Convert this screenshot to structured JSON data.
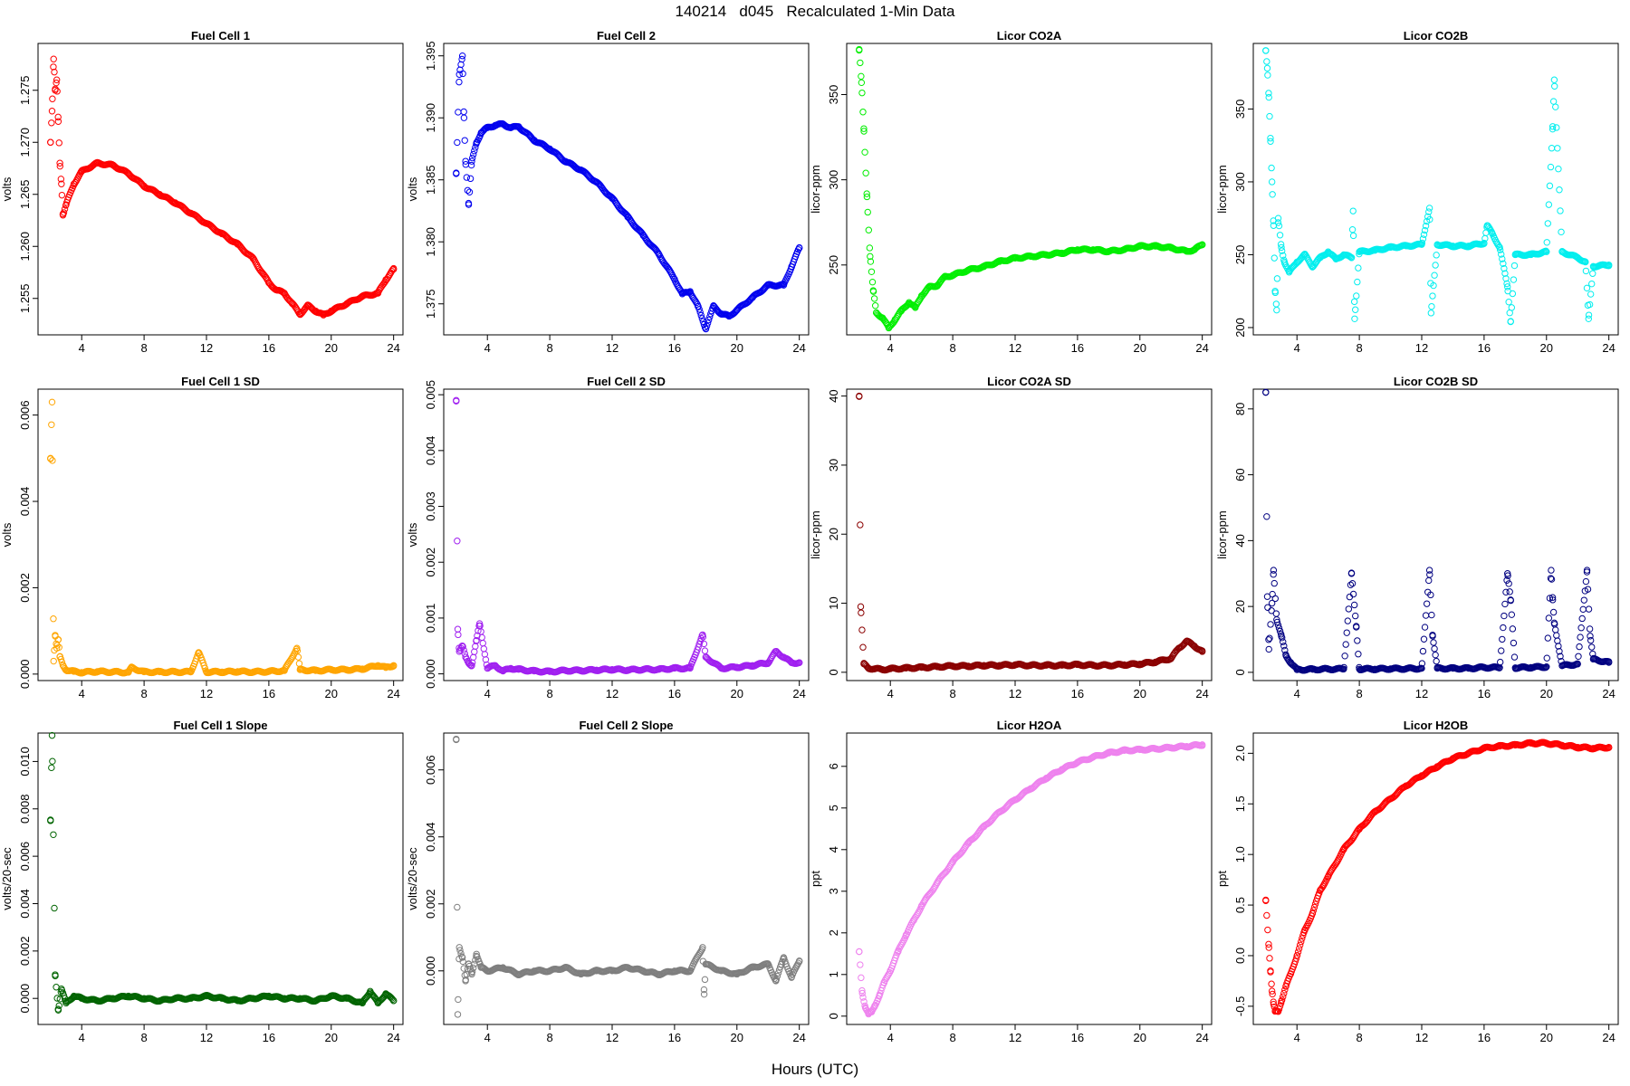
{
  "title": "140214   d045   Recalculated 1-Min Data",
  "xlabel": "Hours (UTC)",
  "chart_data": [
    {
      "type": "scatter",
      "title": "Fuel Cell 1",
      "ylabel": "volts",
      "xlim": [
        1.2,
        24.6
      ],
      "ylim": [
        1.2515,
        1.2795
      ],
      "xticks": [
        4,
        8,
        12,
        16,
        20,
        24
      ],
      "yticks": [
        1.255,
        1.26,
        1.265,
        1.27,
        1.275
      ],
      "ytick_labels": [
        "1.255",
        "1.260",
        "1.265",
        "1.270",
        "1.275"
      ],
      "color": "#ff0000",
      "x": [
        2.0,
        2.1,
        2.2,
        2.3,
        2.4,
        2.5,
        2.6,
        2.7,
        2.8,
        3.0,
        3.5,
        4.0,
        5.0,
        6.0,
        7.0,
        8.0,
        9.0,
        10.0,
        11.0,
        12.0,
        13.0,
        14.0,
        15.0,
        16.0,
        16.5,
        17.0,
        17.5,
        18.0,
        18.5,
        19.0,
        19.5,
        20.0,
        21.0,
        22.0,
        23.0,
        23.5,
        24.0
      ],
      "y": [
        1.27,
        1.273,
        1.278,
        1.275,
        1.276,
        1.272,
        1.268,
        1.266,
        1.263,
        1.264,
        1.266,
        1.2672,
        1.268,
        1.2678,
        1.267,
        1.2658,
        1.265,
        1.2642,
        1.2632,
        1.2622,
        1.2612,
        1.2602,
        1.2588,
        1.2565,
        1.2558,
        1.2555,
        1.2545,
        1.2535,
        1.2543,
        1.2538,
        1.2534,
        1.2538,
        1.2545,
        1.2552,
        1.2555,
        1.2568,
        1.2578
      ]
    },
    {
      "type": "scatter",
      "title": "Fuel Cell 2",
      "ylabel": "volts",
      "xlim": [
        1.2,
        24.6
      ],
      "ylim": [
        1.3725,
        1.396
      ],
      "xticks": [
        4,
        8,
        12,
        16,
        20,
        24
      ],
      "yticks": [
        1.375,
        1.38,
        1.385,
        1.39,
        1.395
      ],
      "ytick_labels": [
        "1.375",
        "1.380",
        "1.385",
        "1.390",
        "1.395"
      ],
      "color": "#0000ee",
      "x": [
        2.0,
        2.2,
        2.4,
        2.5,
        2.6,
        2.8,
        3.0,
        3.3,
        3.6,
        4.0,
        4.5,
        5.0,
        5.5,
        6.0,
        7.0,
        8.0,
        9.0,
        10.0,
        11.0,
        12.0,
        13.0,
        14.0,
        15.0,
        16.0,
        16.5,
        17.0,
        17.5,
        18.0,
        18.5,
        19.0,
        19.5,
        20.0,
        21.0,
        22.0,
        23.0,
        23.5,
        24.0
      ],
      "y": [
        1.3855,
        1.3935,
        1.395,
        1.39,
        1.3865,
        1.383,
        1.3865,
        1.388,
        1.3888,
        1.3892,
        1.3894,
        1.3895,
        1.3892,
        1.3893,
        1.3882,
        1.3875,
        1.3865,
        1.3858,
        1.3848,
        1.3835,
        1.382,
        1.3805,
        1.379,
        1.377,
        1.3758,
        1.376,
        1.3748,
        1.373,
        1.3748,
        1.3742,
        1.374,
        1.3745,
        1.3755,
        1.3765,
        1.3765,
        1.378,
        1.3795
      ]
    },
    {
      "type": "scatter",
      "title": "Licor CO2A",
      "ylabel": "licor-ppm",
      "xlim": [
        1.2,
        24.6
      ],
      "ylim": [
        209,
        380
      ],
      "xticks": [
        4,
        8,
        12,
        16,
        20,
        24
      ],
      "yticks": [
        250,
        300,
        350
      ],
      "ytick_labels": [
        "250",
        "300",
        "350"
      ],
      "color": "#00ee00",
      "x": [
        2.0,
        2.15,
        2.3,
        2.5,
        2.7,
        2.9,
        3.1,
        3.5,
        3.9,
        4.3,
        4.7,
        5.2,
        5.6,
        6.0,
        6.5,
        7.0,
        7.5,
        8.0,
        9.0,
        10.0,
        11.0,
        12.0,
        13.0,
        14.0,
        15.0,
        16.0,
        17.0,
        18.0,
        19.0,
        20.0,
        21.0,
        22.0,
        23.0,
        23.5,
        24.0
      ],
      "y": [
        376,
        357,
        330,
        290,
        255,
        235,
        222,
        219,
        213,
        218,
        223,
        228,
        225,
        232,
        237,
        238,
        243,
        244,
        247,
        249,
        252,
        254,
        255,
        256,
        257,
        259,
        259,
        258,
        259,
        261,
        261,
        260,
        258,
        259,
        262
      ]
    },
    {
      "type": "scatter",
      "title": "Licor CO2B",
      "ylabel": "licor-ppm",
      "xlim": [
        1.2,
        24.6
      ],
      "ylim": [
        195,
        395
      ],
      "xticks": [
        4,
        8,
        12,
        16,
        20,
        24
      ],
      "yticks": [
        200,
        250,
        300,
        350
      ],
      "ytick_labels": [
        "200",
        "250",
        "300",
        "350"
      ],
      "color": "#00eeee",
      "x": [
        2.0,
        2.1,
        2.2,
        2.3,
        2.4,
        2.5,
        2.6,
        2.7,
        2.8,
        3.0,
        3.2,
        3.5,
        4.0,
        4.5,
        5.0,
        5.5,
        6.0,
        6.5,
        7.0,
        7.5,
        7.6,
        7.7,
        8.0,
        9.0,
        10.0,
        11.0,
        12.0,
        12.5,
        12.6,
        13.0,
        14.0,
        15.0,
        16.0,
        16.2,
        16.5,
        17.0,
        17.5,
        17.7,
        18.0,
        19.0,
        20.0,
        20.4,
        20.5,
        21.0,
        22.0,
        22.5,
        22.7,
        23.0,
        24.0
      ],
      "y": [
        390,
        378,
        358,
        330,
        300,
        270,
        225,
        212,
        275,
        255,
        245,
        238,
        245,
        250,
        242,
        248,
        252,
        247,
        250,
        248,
        280,
        206,
        252,
        253,
        255,
        256,
        257,
        282,
        210,
        257,
        256,
        256,
        258,
        270,
        265,
        255,
        228,
        204,
        250,
        250,
        252,
        338,
        370,
        252,
        248,
        245,
        206,
        242,
        243
      ]
    },
    {
      "type": "scatter",
      "title": "Fuel Cell 1 SD",
      "ylabel": "volts",
      "xlim": [
        1.2,
        24.6
      ],
      "ylim": [
        -0.00015,
        0.0066
      ],
      "xticks": [
        4,
        8,
        12,
        16,
        20,
        24
      ],
      "yticks": [
        0,
        0.002,
        0.004,
        0.006
      ],
      "ytick_labels": [
        "0.000",
        "0.002",
        "0.004",
        "0.006"
      ],
      "color": "#ffa500",
      "x": [
        2.0,
        2.1,
        2.2,
        2.3,
        2.4,
        2.5,
        2.6,
        2.8,
        3.0,
        3.5,
        4.0,
        5.0,
        6.0,
        7.0,
        7.2,
        8.0,
        9.0,
        10.0,
        11.0,
        11.5,
        12.0,
        13.0,
        14.0,
        15.0,
        16.0,
        17.0,
        17.8,
        18.0,
        19.0,
        20.0,
        21.0,
        22.0,
        23.0,
        23.5,
        24.0
      ],
      "y": [
        0.005,
        0.0063,
        0.0003,
        0.0009,
        0.0006,
        0.0008,
        0.0004,
        0.0002,
        0.0001,
        6e-05,
        4e-05,
        6e-05,
        5e-05,
        4e-05,
        0.00015,
        5e-05,
        5e-05,
        5e-05,
        5e-05,
        0.0005,
        5e-05,
        5e-05,
        6e-05,
        5e-05,
        6e-05,
        8e-05,
        0.0006,
        0.0001,
        8e-05,
        0.0001,
        0.0001,
        0.00012,
        0.0002,
        0.00015,
        0.0002
      ]
    },
    {
      "type": "scatter",
      "title": "Fuel Cell 2 SD",
      "ylabel": "volts",
      "xlim": [
        1.2,
        24.6
      ],
      "ylim": [
        -0.00012,
        0.0051
      ],
      "xticks": [
        4,
        8,
        12,
        16,
        20,
        24
      ],
      "yticks": [
        0,
        0.001,
        0.002,
        0.003,
        0.004,
        0.005
      ],
      "ytick_labels": [
        "0.000",
        "0.001",
        "0.002",
        "0.003",
        "0.004",
        "0.005"
      ],
      "color": "#a020f0",
      "x": [
        2.0,
        2.1,
        2.2,
        2.4,
        2.6,
        2.8,
        3.0,
        3.3,
        3.5,
        4.0,
        4.5,
        5.0,
        5.5,
        6.0,
        7.0,
        8.0,
        9.0,
        10.0,
        11.0,
        12.0,
        13.0,
        14.0,
        15.0,
        16.0,
        17.0,
        17.8,
        18.0,
        19.0,
        20.0,
        21.0,
        22.0,
        22.5,
        23.0,
        23.5,
        24.0
      ],
      "y": [
        0.0049,
        0.0008,
        0.0004,
        0.0005,
        0.0003,
        0.0002,
        0.00015,
        0.0006,
        0.0009,
        0.0001,
        0.00015,
        5e-05,
        0.0001,
        8e-05,
        5e-05,
        4e-05,
        6e-05,
        6e-05,
        7e-05,
        8e-05,
        7e-05,
        8e-05,
        8e-05,
        0.0001,
        0.0001,
        0.0007,
        0.0003,
        0.0001,
        0.00012,
        0.00015,
        0.0002,
        0.0004,
        0.0003,
        0.0002,
        0.0002
      ]
    },
    {
      "type": "scatter",
      "title": "Licor CO2A SD",
      "ylabel": "licor-ppm",
      "xlim": [
        1.2,
        24.6
      ],
      "ylim": [
        -1.2,
        41
      ],
      "xticks": [
        4,
        8,
        12,
        16,
        20,
        24
      ],
      "yticks": [
        0,
        10,
        20,
        30,
        40
      ],
      "ytick_labels": [
        "0",
        "10",
        "20",
        "30",
        "40"
      ],
      "color": "#8b0000",
      "x": [
        2.0,
        2.1,
        2.3,
        2.6,
        3.0,
        3.5,
        4.0,
        5.0,
        6.0,
        7.0,
        8.0,
        9.0,
        10.0,
        11.0,
        12.0,
        13.0,
        14.0,
        15.0,
        16.0,
        17.0,
        18.0,
        19.0,
        20.0,
        21.0,
        22.0,
        22.5,
        23.0,
        23.5,
        24.0
      ],
      "y": [
        40,
        9.5,
        1.2,
        0.6,
        0.5,
        0.4,
        0.5,
        0.6,
        0.7,
        0.8,
        0.9,
        0.9,
        1.0,
        1.0,
        1.1,
        1.0,
        1.0,
        1.0,
        1.1,
        1.0,
        1.0,
        1.1,
        1.2,
        1.5,
        2.0,
        3.5,
        4.5,
        3.8,
        3.0
      ]
    },
    {
      "type": "scatter",
      "title": "Licor CO2B SD",
      "ylabel": "licor-ppm",
      "xlim": [
        1.2,
        24.6
      ],
      "ylim": [
        -2.5,
        86
      ],
      "xticks": [
        4,
        8,
        12,
        16,
        20,
        24
      ],
      "yticks": [
        0,
        20,
        40,
        60,
        80
      ],
      "ytick_labels": [
        "0",
        "20",
        "40",
        "60",
        "80"
      ],
      "color": "#000080",
      "x": [
        2.0,
        2.1,
        2.2,
        2.4,
        2.5,
        2.7,
        3.0,
        3.3,
        3.6,
        4.0,
        5.0,
        6.0,
        7.0,
        7.5,
        7.8,
        8.0,
        9.0,
        10.0,
        11.0,
        12.0,
        12.5,
        12.7,
        13.0,
        14.0,
        15.0,
        16.0,
        17.0,
        17.5,
        17.7,
        18.0,
        19.0,
        20.0,
        20.3,
        20.4,
        20.5,
        21.0,
        22.0,
        22.6,
        22.8,
        23.0,
        24.0
      ],
      "y": [
        85,
        23,
        7,
        21,
        31,
        16,
        11,
        5,
        3,
        0.8,
        0.9,
        1.0,
        1.0,
        30,
        14,
        1.0,
        1.0,
        1.1,
        1.1,
        1.2,
        31,
        11,
        1.2,
        1.2,
        1.2,
        1.5,
        1.4,
        30,
        22,
        1.4,
        1.5,
        1.7,
        31,
        22,
        15,
        2.0,
        2.5,
        31,
        11,
        4,
        3
      ]
    },
    {
      "type": "scatter",
      "title": "Fuel Cell 1 Slope",
      "ylabel": "volts/20-sec",
      "xlim": [
        1.2,
        24.6
      ],
      "ylim": [
        -0.0011,
        0.0112
      ],
      "xticks": [
        4,
        8,
        12,
        16,
        20,
        24
      ],
      "yticks": [
        0,
        0.002,
        0.004,
        0.006,
        0.008,
        0.01
      ],
      "ytick_labels": [
        "0.000",
        "0.002",
        "0.004",
        "0.006",
        "0.008",
        "0.010"
      ],
      "color": "#006400",
      "x": [
        2.0,
        2.1,
        2.3,
        2.5,
        2.7,
        3.0,
        3.5,
        4.0,
        5.0,
        6.0,
        7.0,
        8.0,
        9.0,
        10.0,
        11.0,
        12.0,
        13.0,
        14.0,
        15.0,
        16.0,
        17.0,
        18.0,
        19.0,
        20.0,
        21.0,
        22.0,
        22.5,
        23.0,
        23.5,
        24.0
      ],
      "y": [
        0.0075,
        0.0111,
        0.001,
        -0.0005,
        0.0004,
        -0.0002,
        0.0001,
        0.0,
        -0.0001,
        0.0,
        0.0001,
        0.0,
        -0.0001,
        0.0,
        0.0,
        0.0001,
        0.0,
        -0.0001,
        0.0,
        0.0001,
        0.0,
        0.0,
        -0.0001,
        0.0001,
        0.0,
        -0.0002,
        0.0003,
        -0.0002,
        0.0002,
        -0.0001
      ]
    },
    {
      "type": "scatter",
      "title": "Fuel Cell 2 Slope",
      "ylabel": "volts/20-sec",
      "xlim": [
        1.2,
        24.6
      ],
      "ylim": [
        -0.0016,
        0.0071
      ],
      "xticks": [
        4,
        8,
        12,
        16,
        20,
        24
      ],
      "yticks": [
        0,
        0.002,
        0.004,
        0.006
      ],
      "ytick_labels": [
        "0.000",
        "0.002",
        "0.004",
        "0.006"
      ],
      "color": "#7f7f7f",
      "x": [
        2.0,
        2.1,
        2.2,
        2.4,
        2.6,
        2.8,
        3.0,
        3.3,
        3.6,
        4.0,
        5.0,
        6.0,
        7.0,
        8.0,
        9.0,
        10.0,
        11.0,
        12.0,
        13.0,
        14.0,
        15.0,
        16.0,
        17.0,
        17.8,
        17.9,
        18.0,
        19.0,
        20.0,
        21.0,
        22.0,
        22.5,
        23.0,
        23.5,
        24.0
      ],
      "y": [
        0.0069,
        -0.0013,
        0.0007,
        0.0004,
        -0.0003,
        0.0002,
        -0.0001,
        0.0005,
        0.0001,
        0.0,
        0.0001,
        -0.0001,
        0.0,
        0.0,
        0.0001,
        -0.0001,
        0.0,
        0.0,
        0.0001,
        0.0,
        -0.0001,
        0.0,
        0.0,
        0.0007,
        -0.0007,
        0.0002,
        0.0,
        -0.0001,
        0.0001,
        0.0002,
        -0.0003,
        0.0004,
        -0.0002,
        0.0003
      ]
    },
    {
      "type": "scatter",
      "title": "Licor H2OA",
      "ylabel": "ppt",
      "xlim": [
        1.2,
        24.6
      ],
      "ylim": [
        -0.2,
        6.8
      ],
      "xticks": [
        4,
        8,
        12,
        16,
        20,
        24
      ],
      "yticks": [
        0,
        1,
        2,
        3,
        4,
        5,
        6
      ],
      "ytick_labels": [
        "0",
        "1",
        "2",
        "3",
        "4",
        "5",
        "6"
      ],
      "color": "#ee82ee",
      "x": [
        2.0,
        2.2,
        2.4,
        2.6,
        2.8,
        3.0,
        3.3,
        3.6,
        4.0,
        4.5,
        5.0,
        5.5,
        6.0,
        7.0,
        8.0,
        9.0,
        10.0,
        11.0,
        12.0,
        13.0,
        14.0,
        15.0,
        16.0,
        17.0,
        18.0,
        19.0,
        20.0,
        21.0,
        22.0,
        23.0,
        24.0
      ],
      "y": [
        1.55,
        0.55,
        0.2,
        0.05,
        0.1,
        0.25,
        0.5,
        0.8,
        1.1,
        1.55,
        1.95,
        2.3,
        2.65,
        3.2,
        3.7,
        4.15,
        4.55,
        4.9,
        5.2,
        5.47,
        5.72,
        5.93,
        6.1,
        6.22,
        6.32,
        6.38,
        6.4,
        6.42,
        6.45,
        6.48,
        6.52
      ]
    },
    {
      "type": "scatter",
      "title": "Licor H2OB",
      "ylabel": "ppt",
      "xlim": [
        1.2,
        24.6
      ],
      "ylim": [
        -0.68,
        2.2
      ],
      "xticks": [
        4,
        8,
        12,
        16,
        20,
        24
      ],
      "yticks": [
        -0.5,
        0,
        0.5,
        1,
        1.5,
        2
      ],
      "ytick_labels": [
        "-0.5",
        "0.0",
        "0.5",
        "1.0",
        "1.5",
        "2.0"
      ],
      "color": "#ff0000",
      "x": [
        2.0,
        2.2,
        2.3,
        2.4,
        2.5,
        2.6,
        2.8,
        3.0,
        3.3,
        3.6,
        4.0,
        4.5,
        5.0,
        5.5,
        6.0,
        7.0,
        8.0,
        9.0,
        10.0,
        11.0,
        12.0,
        13.0,
        14.0,
        15.0,
        16.0,
        17.0,
        18.0,
        19.0,
        20.0,
        21.0,
        22.0,
        23.0,
        24.0
      ],
      "y": [
        0.55,
        0.08,
        -0.15,
        -0.35,
        -0.48,
        -0.55,
        -0.55,
        -0.45,
        -0.3,
        -0.18,
        0.0,
        0.25,
        0.42,
        0.65,
        0.78,
        1.05,
        1.25,
        1.42,
        1.55,
        1.68,
        1.78,
        1.87,
        1.95,
        2.0,
        2.05,
        2.07,
        2.08,
        2.1,
        2.1,
        2.08,
        2.06,
        2.05,
        2.06
      ]
    }
  ]
}
